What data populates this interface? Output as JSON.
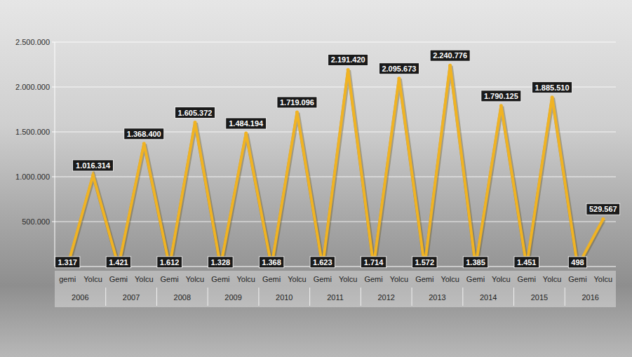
{
  "chart_data": {
    "type": "line",
    "categories": [
      "gemi",
      "Yolcu",
      "Gemi",
      "Yolcu",
      "Gemi",
      "Yolcu",
      "Gemi",
      "Yolcu",
      "Gemi",
      "Yolcu",
      "Gemi",
      "Yolcu",
      "Gemi",
      "Yolcu",
      "Gemi",
      "Yolcu",
      "Gemi",
      "Yolcu",
      "Gemi",
      "Yolcu",
      "Gemi",
      "Yolcu"
    ],
    "category_groups": [
      "2006",
      "2007",
      "2008",
      "2009",
      "2010",
      "2011",
      "2012",
      "2013",
      "2014",
      "2015",
      "2016"
    ],
    "values": [
      1317,
      1016314,
      1421,
      1368400,
      1612,
      1605372,
      1328,
      1484194,
      1368,
      1719096,
      1623,
      2191420,
      1714,
      2095673,
      1572,
      2240776,
      1385,
      1790125,
      1451,
      1885510,
      498,
      529567
    ],
    "value_labels": [
      "1.317",
      "1.016.314",
      "1.421",
      "1.368.400",
      "1.612",
      "1.605.372",
      "1.328",
      "1.484.194",
      "1.368",
      "1.719.096",
      "1.623",
      "2.191.420",
      "1.714",
      "2.095.673",
      "1.572",
      "2.240.776",
      "1.385",
      "1.790.125",
      "1.451",
      "1.885.510",
      "498",
      "529.567"
    ],
    "color": "#f0b323",
    "data_labels": true,
    "grid": true,
    "ylim": [
      0,
      2500000
    ],
    "yticks": [
      {
        "value": 500000,
        "label": "500.000"
      },
      {
        "value": 1000000,
        "label": "1.000.000"
      },
      {
        "value": 1500000,
        "label": "1.500.000"
      },
      {
        "value": 2000000,
        "label": "2.000.000"
      },
      {
        "value": 2500000,
        "label": "2.500.000"
      }
    ]
  }
}
